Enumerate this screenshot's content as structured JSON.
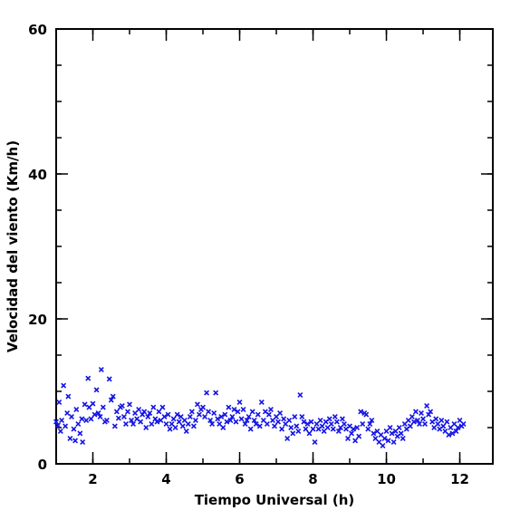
{
  "chart_data": {
    "type": "scatter",
    "title": "",
    "xlabel": "Tiempo Universal (h)",
    "ylabel": "Velocidad del viento (Km/h)",
    "xlim": [
      1.0,
      12.9
    ],
    "ylim": [
      0,
      60
    ],
    "xticks_major": [
      2,
      4,
      6,
      8,
      10,
      12
    ],
    "xticks_minor": [
      1,
      2,
      3,
      4,
      5,
      6,
      7,
      8,
      9,
      10,
      11,
      12
    ],
    "yticks_major": [
      0,
      20,
      40,
      60
    ],
    "yticks_minor": [
      0,
      5,
      10,
      15,
      20,
      25,
      30,
      35,
      40,
      45,
      50,
      55,
      60
    ],
    "x_tick_labels": [
      "2",
      "4",
      "6",
      "8",
      "10",
      "12"
    ],
    "y_tick_labels": [
      "0",
      "20",
      "40",
      "60"
    ],
    "marker": "x",
    "marker_color": "#1414e6",
    "grid": false,
    "legend": "none",
    "points": [
      [
        1.0,
        5.8
      ],
      [
        1.05,
        5.3
      ],
      [
        1.08,
        8.5
      ],
      [
        1.12,
        4.5
      ],
      [
        1.15,
        6.0
      ],
      [
        1.2,
        10.8
      ],
      [
        1.25,
        5.2
      ],
      [
        1.3,
        7.0
      ],
      [
        1.33,
        9.3
      ],
      [
        1.38,
        3.5
      ],
      [
        1.42,
        6.5
      ],
      [
        1.48,
        4.8
      ],
      [
        1.52,
        3.2
      ],
      [
        1.55,
        7.5
      ],
      [
        1.6,
        5.5
      ],
      [
        1.65,
        4.2
      ],
      [
        1.7,
        6.2
      ],
      [
        1.72,
        3.0
      ],
      [
        1.78,
        8.2
      ],
      [
        1.82,
        6.0
      ],
      [
        1.87,
        11.8
      ],
      [
        1.9,
        7.8
      ],
      [
        1.95,
        6.2
      ],
      [
        2.0,
        8.3
      ],
      [
        2.05,
        6.8
      ],
      [
        2.1,
        10.2
      ],
      [
        2.15,
        7.0
      ],
      [
        2.2,
        6.5
      ],
      [
        2.23,
        13.0
      ],
      [
        2.28,
        7.8
      ],
      [
        2.33,
        5.8
      ],
      [
        2.38,
        6.0
      ],
      [
        2.45,
        11.7
      ],
      [
        2.5,
        8.8
      ],
      [
        2.55,
        9.3
      ],
      [
        2.6,
        5.2
      ],
      [
        2.65,
        7.2
      ],
      [
        2.7,
        6.3
      ],
      [
        2.75,
        7.8
      ],
      [
        2.8,
        8.0
      ],
      [
        2.85,
        6.5
      ],
      [
        2.9,
        5.5
      ],
      [
        2.95,
        7.2
      ],
      [
        3.0,
        8.2
      ],
      [
        3.05,
        6.0
      ],
      [
        3.1,
        5.5
      ],
      [
        3.15,
        7.0
      ],
      [
        3.2,
        6.2
      ],
      [
        3.25,
        7.5
      ],
      [
        3.3,
        5.8
      ],
      [
        3.35,
        6.8
      ],
      [
        3.4,
        7.2
      ],
      [
        3.45,
        5.0
      ],
      [
        3.5,
        6.5
      ],
      [
        3.55,
        7.0
      ],
      [
        3.6,
        5.5
      ],
      [
        3.65,
        7.8
      ],
      [
        3.7,
        6.2
      ],
      [
        3.75,
        5.8
      ],
      [
        3.8,
        7.2
      ],
      [
        3.85,
        6.0
      ],
      [
        3.9,
        7.8
      ],
      [
        3.95,
        6.5
      ],
      [
        4.0,
        5.5
      ],
      [
        4.05,
        6.8
      ],
      [
        4.1,
        4.8
      ],
      [
        4.15,
        5.5
      ],
      [
        4.2,
        6.2
      ],
      [
        4.25,
        5.0
      ],
      [
        4.3,
        6.8
      ],
      [
        4.35,
        5.8
      ],
      [
        4.4,
        6.5
      ],
      [
        4.45,
        5.2
      ],
      [
        4.5,
        6.0
      ],
      [
        4.55,
        4.5
      ],
      [
        4.6,
        5.5
      ],
      [
        4.65,
        6.5
      ],
      [
        4.7,
        7.2
      ],
      [
        4.75,
        5.2
      ],
      [
        4.8,
        6.0
      ],
      [
        4.85,
        8.2
      ],
      [
        4.9,
        6.8
      ],
      [
        4.95,
        7.5
      ],
      [
        5.0,
        7.8
      ],
      [
        5.05,
        6.5
      ],
      [
        5.1,
        9.8
      ],
      [
        5.15,
        7.2
      ],
      [
        5.2,
        6.0
      ],
      [
        5.25,
        5.5
      ],
      [
        5.3,
        7.0
      ],
      [
        5.35,
        9.8
      ],
      [
        5.4,
        6.2
      ],
      [
        5.45,
        5.5
      ],
      [
        5.5,
        6.5
      ],
      [
        5.55,
        5.0
      ],
      [
        5.6,
        6.8
      ],
      [
        5.65,
        5.8
      ],
      [
        5.7,
        7.8
      ],
      [
        5.75,
        6.0
      ],
      [
        5.8,
        6.5
      ],
      [
        5.85,
        7.5
      ],
      [
        5.9,
        5.8
      ],
      [
        5.95,
        7.2
      ],
      [
        6.0,
        8.5
      ],
      [
        6.05,
        6.2
      ],
      [
        6.1,
        7.5
      ],
      [
        6.15,
        5.5
      ],
      [
        6.2,
        6.0
      ],
      [
        6.25,
        6.5
      ],
      [
        6.3,
        4.8
      ],
      [
        6.35,
        7.2
      ],
      [
        6.4,
        6.0
      ],
      [
        6.45,
        5.5
      ],
      [
        6.5,
        6.8
      ],
      [
        6.55,
        5.2
      ],
      [
        6.6,
        8.5
      ],
      [
        6.65,
        6.0
      ],
      [
        6.7,
        7.2
      ],
      [
        6.75,
        5.5
      ],
      [
        6.8,
        6.8
      ],
      [
        6.85,
        7.5
      ],
      [
        6.9,
        6.0
      ],
      [
        6.95,
        5.2
      ],
      [
        7.0,
        6.5
      ],
      [
        7.05,
        5.8
      ],
      [
        7.1,
        7.0
      ],
      [
        7.15,
        4.8
      ],
      [
        7.2,
        6.2
      ],
      [
        7.25,
        5.5
      ],
      [
        7.3,
        3.5
      ],
      [
        7.35,
        6.0
      ],
      [
        7.4,
        5.0
      ],
      [
        7.45,
        4.2
      ],
      [
        7.5,
        6.5
      ],
      [
        7.55,
        5.2
      ],
      [
        7.6,
        4.5
      ],
      [
        7.65,
        9.5
      ],
      [
        7.7,
        6.5
      ],
      [
        7.75,
        5.8
      ],
      [
        7.8,
        4.8
      ],
      [
        7.85,
        5.5
      ],
      [
        7.9,
        4.2
      ],
      [
        7.95,
        5.8
      ],
      [
        8.0,
        4.8
      ],
      [
        8.05,
        3.0
      ],
      [
        8.1,
        5.5
      ],
      [
        8.15,
        4.8
      ],
      [
        8.2,
        6.0
      ],
      [
        8.25,
        5.2
      ],
      [
        8.3,
        4.5
      ],
      [
        8.35,
        5.8
      ],
      [
        8.4,
        5.0
      ],
      [
        8.45,
        6.2
      ],
      [
        8.5,
        5.5
      ],
      [
        8.55,
        4.8
      ],
      [
        8.6,
        6.5
      ],
      [
        8.65,
        5.8
      ],
      [
        8.7,
        4.5
      ],
      [
        8.75,
        5.0
      ],
      [
        8.8,
        6.2
      ],
      [
        8.85,
        5.5
      ],
      [
        8.9,
        4.8
      ],
      [
        8.95,
        3.5
      ],
      [
        9.0,
        5.2
      ],
      [
        9.05,
        4.2
      ],
      [
        9.1,
        4.8
      ],
      [
        9.15,
        3.2
      ],
      [
        9.2,
        5.0
      ],
      [
        9.25,
        3.8
      ],
      [
        9.3,
        7.2
      ],
      [
        9.35,
        5.5
      ],
      [
        9.4,
        7.0
      ],
      [
        9.45,
        6.8
      ],
      [
        9.5,
        4.8
      ],
      [
        9.55,
        5.5
      ],
      [
        9.6,
        6.0
      ],
      [
        9.65,
        4.2
      ],
      [
        9.7,
        3.5
      ],
      [
        9.75,
        4.5
      ],
      [
        9.8,
        3.0
      ],
      [
        9.85,
        4.0
      ],
      [
        9.9,
        2.5
      ],
      [
        9.95,
        3.5
      ],
      [
        10.0,
        4.5
      ],
      [
        10.05,
        3.2
      ],
      [
        10.1,
        5.0
      ],
      [
        10.15,
        4.2
      ],
      [
        10.2,
        3.0
      ],
      [
        10.25,
        4.5
      ],
      [
        10.3,
        3.8
      ],
      [
        10.35,
        5.0
      ],
      [
        10.4,
        4.2
      ],
      [
        10.45,
        3.5
      ],
      [
        10.5,
        5.5
      ],
      [
        10.55,
        4.8
      ],
      [
        10.6,
        6.0
      ],
      [
        10.65,
        5.2
      ],
      [
        10.7,
        6.5
      ],
      [
        10.75,
        5.8
      ],
      [
        10.8,
        7.2
      ],
      [
        10.85,
        6.0
      ],
      [
        10.9,
        5.5
      ],
      [
        10.95,
        7.0
      ],
      [
        11.0,
        6.2
      ],
      [
        11.05,
        5.5
      ],
      [
        11.1,
        8.0
      ],
      [
        11.15,
        6.8
      ],
      [
        11.2,
        7.2
      ],
      [
        11.25,
        5.8
      ],
      [
        11.3,
        5.0
      ],
      [
        11.35,
        6.2
      ],
      [
        11.4,
        5.5
      ],
      [
        11.45,
        4.8
      ],
      [
        11.5,
        6.0
      ],
      [
        11.55,
        5.2
      ],
      [
        11.6,
        4.5
      ],
      [
        11.65,
        5.8
      ],
      [
        11.7,
        4.0
      ],
      [
        11.75,
        5.0
      ],
      [
        11.8,
        4.2
      ],
      [
        11.85,
        5.5
      ],
      [
        11.9,
        4.5
      ],
      [
        11.95,
        5.0
      ],
      [
        12.0,
        6.0
      ],
      [
        12.05,
        5.2
      ],
      [
        12.1,
        5.5
      ]
    ]
  }
}
